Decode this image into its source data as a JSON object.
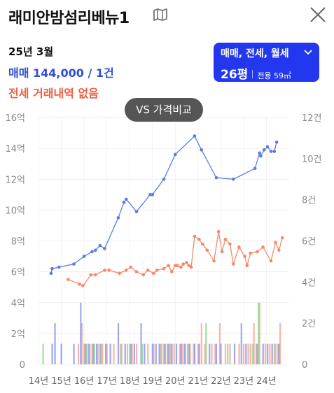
{
  "header": {
    "title": "래미안밤섬리베뉴1",
    "map_icon": "folded-map-icon",
    "close_icon": "close-x-icon"
  },
  "summary": {
    "date": "25년 3월",
    "trade_line": "매매 144,000 / 1건",
    "lease_line": "전세 거래내역 없음"
  },
  "filter": {
    "types": "매매, 전세, 월세",
    "size": "26평",
    "area": "전용 59㎡"
  },
  "compare_button": "VS 가격비교",
  "colors": {
    "trade_line": "#5b7be8",
    "lease_line": "#f58a6a",
    "bar_blue": "#8d99f0",
    "bar_salmon": "#f7a898",
    "bar_green": "#8fd88f",
    "filter_bg": "#2338ee",
    "trade_text": "#2f4fd6",
    "lease_text": "#f0603f"
  },
  "chart_data": {
    "type": "line",
    "x_axis": {
      "tick_labels": [
        "14년",
        "15년",
        "16년",
        "17년",
        "18년",
        "19년",
        "20년",
        "21년",
        "22년",
        "23년",
        "24년"
      ],
      "range": [
        2014,
        2025
      ]
    },
    "y_axis_left": {
      "tick_labels": [
        "0",
        "2억",
        "4억",
        "6억",
        "8억",
        "10억",
        "12억",
        "14억",
        "16억"
      ],
      "range": [
        0,
        16
      ],
      "unit": "억"
    },
    "y_axis_right": {
      "tick_labels": [
        "0",
        "2건",
        "4건",
        "6건",
        "8건",
        "10건",
        "12건"
      ],
      "range": [
        0,
        12
      ],
      "unit": "건"
    },
    "grid": true,
    "series": [
      {
        "axis": "left",
        "color_key": "trade_line",
        "x": [
          2014.55,
          2014.6,
          2014.9,
          2015.55,
          2016.0,
          2016.35,
          2016.5,
          2016.7,
          2016.9,
          2017.5,
          2017.75,
          2017.85,
          2018.3,
          2018.9,
          2019.0,
          2019.5,
          2020.0,
          2020.85,
          2021.15,
          2021.8,
          2022.55,
          2023.5,
          2023.7,
          2023.75,
          2023.9,
          2024.05,
          2024.2,
          2024.35,
          2024.45
        ],
        "y": [
          5.9,
          6.2,
          6.3,
          6.5,
          7.0,
          7.3,
          7.4,
          7.7,
          7.5,
          9.5,
          10.5,
          10.7,
          9.9,
          11.0,
          11.0,
          12.0,
          13.6,
          14.8,
          13.9,
          12.1,
          12.0,
          12.7,
          13.7,
          13.5,
          13.9,
          14.1,
          13.8,
          13.8,
          14.4
        ]
      },
      {
        "axis": "left",
        "color_key": "lease_line",
        "x": [
          2015.3,
          2015.8,
          2015.95,
          2016.3,
          2016.5,
          2016.9,
          2017.1,
          2017.55,
          2017.85,
          2018.05,
          2018.3,
          2018.6,
          2018.8,
          2019.05,
          2019.2,
          2019.5,
          2019.7,
          2019.85,
          2020.0,
          2020.1,
          2020.25,
          2020.35,
          2020.5,
          2020.6,
          2020.7,
          2020.85,
          2021.05,
          2021.2,
          2021.4,
          2021.7,
          2021.9,
          2022.05,
          2022.2,
          2022.4,
          2022.55,
          2022.8,
          2023.05,
          2023.15,
          2023.3,
          2023.6,
          2023.85,
          2024.2,
          2024.4,
          2024.55,
          2024.7
        ],
        "y": [
          5.5,
          5.2,
          5.1,
          5.8,
          5.8,
          6.1,
          6.1,
          5.9,
          6.1,
          6.3,
          6.0,
          5.8,
          6.1,
          5.9,
          6.1,
          6.2,
          6.4,
          6.0,
          6.4,
          6.4,
          6.3,
          6.5,
          6.6,
          6.4,
          6.3,
          8.3,
          8.1,
          7.8,
          7.4,
          6.7,
          8.6,
          7.3,
          8.1,
          7.8,
          6.5,
          7.6,
          7.0,
          6.4,
          7.2,
          7.3,
          7.6,
          6.7,
          7.9,
          7.4,
          8.2
        ]
      }
    ],
    "volume_bars": {
      "axis": "right",
      "blue": {
        "x": [
          2014.6,
          2014.72,
          2015.0,
          2015.55,
          2015.85,
          2016.05,
          2016.1,
          2016.2,
          2016.4,
          2016.55,
          2016.7,
          2016.95,
          2017.15,
          2017.5,
          2017.8,
          2018.05,
          2018.2,
          2018.5,
          2018.65,
          2019.0,
          2019.15,
          2019.3,
          2019.55,
          2019.7,
          2019.85,
          2020.05,
          2020.25,
          2020.4,
          2020.6,
          2020.85,
          2021.05,
          2021.5,
          2021.8,
          2022.0,
          2022.6,
          2022.9,
          2023.1,
          2023.6,
          2023.85,
          2024.05,
          2024.25,
          2024.55
        ],
        "counts": [
          1,
          2,
          1,
          1,
          3,
          1,
          1,
          1,
          1,
          1,
          1,
          1,
          1,
          2,
          1,
          1,
          1,
          2,
          1,
          1,
          1,
          1,
          1,
          1,
          1,
          1,
          1,
          1,
          1,
          1,
          1,
          1,
          1,
          1,
          1,
          2,
          1,
          1,
          1,
          1,
          1,
          1
        ]
      },
      "salmon": {
        "x": [
          2015.75,
          2015.9,
          2016.0,
          2016.25,
          2016.35,
          2016.6,
          2016.8,
          2017.0,
          2017.3,
          2017.6,
          2017.9,
          2018.1,
          2018.3,
          2018.8,
          2019.05,
          2019.35,
          2019.5,
          2019.65,
          2019.8,
          2019.95,
          2020.2,
          2020.3,
          2020.45,
          2020.65,
          2020.8,
          2021.0,
          2021.15,
          2021.3,
          2021.6,
          2021.75,
          2021.95,
          2022.2,
          2022.4,
          2022.8,
          2023.0,
          2023.2,
          2023.3,
          2023.45,
          2023.55,
          2023.7,
          2023.95,
          2024.15,
          2024.35,
          2024.5,
          2024.6
        ],
        "counts": [
          1,
          2,
          1,
          1,
          1,
          1,
          1,
          1,
          1,
          1,
          1,
          1,
          1,
          1,
          1,
          1,
          1,
          1,
          1,
          1,
          1,
          1,
          1,
          1,
          1,
          1,
          2,
          1,
          1,
          1,
          2,
          1,
          1,
          1,
          1,
          1,
          1,
          2,
          1,
          3,
          1,
          1,
          1,
          1,
          2
        ]
      },
      "green": {
        "x": [
          2014.2,
          2016.1,
          2016.45,
          2016.75,
          2017.65,
          2018.0,
          2018.55,
          2019.4,
          2019.75,
          2020.55,
          2021.35,
          2022.3,
          2023.4,
          2023.65,
          2024.4
        ],
        "counts": [
          1,
          1,
          1,
          1,
          1,
          1,
          1,
          1,
          1,
          1,
          2,
          1,
          1,
          3,
          1
        ]
      }
    }
  }
}
